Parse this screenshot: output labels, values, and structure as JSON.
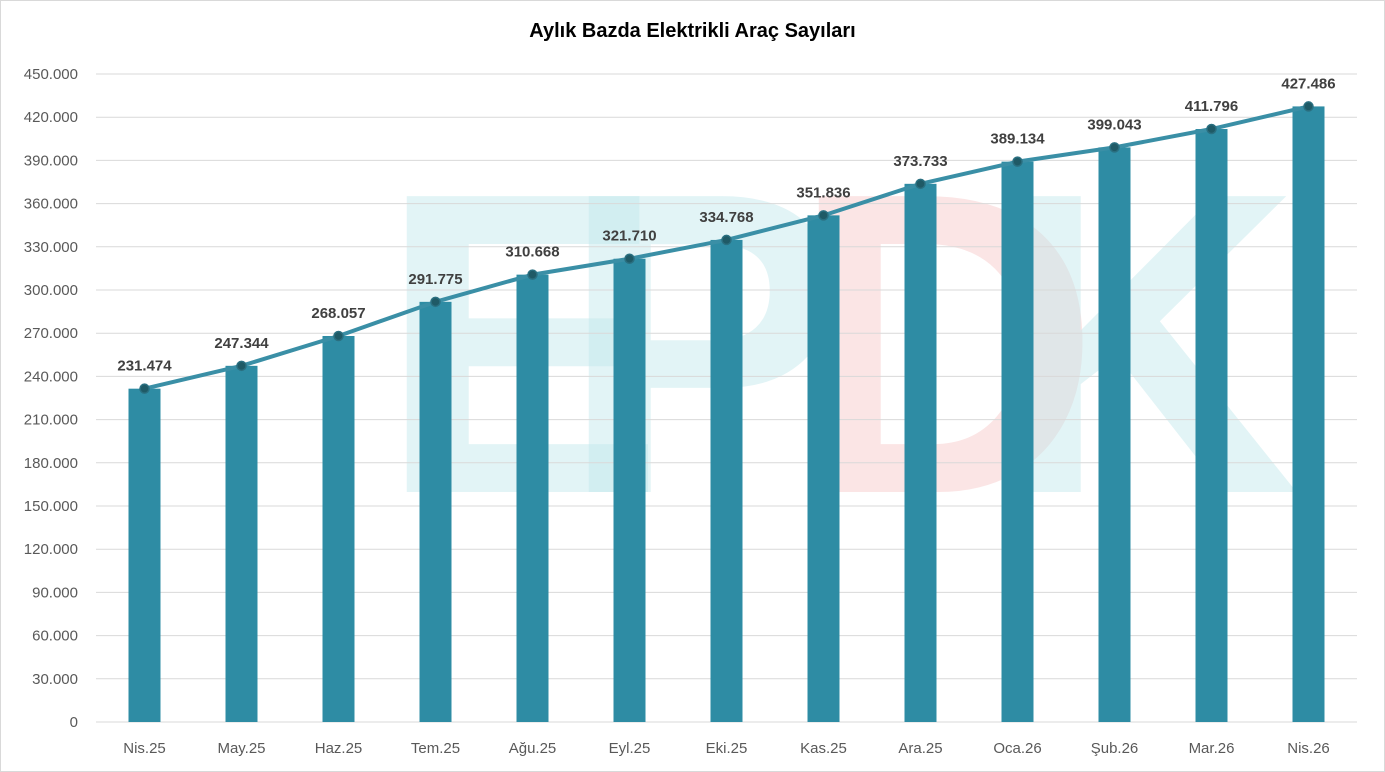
{
  "chart_data": {
    "type": "bar",
    "title": "Aylık Bazda Elektrikli Araç Sayıları",
    "watermark": "EPDK",
    "categories": [
      "Nis.25",
      "May.25",
      "Haz.25",
      "Tem.25",
      "Ağu.25",
      "Eyl.25",
      "Eki.25",
      "Kas.25",
      "Ara.25",
      "Oca.26",
      "Şub.26",
      "Mar.26",
      "Nis.26"
    ],
    "values": [
      231474,
      247344,
      268057,
      291775,
      310668,
      321710,
      334768,
      351836,
      373733,
      389134,
      399043,
      411796,
      427486
    ],
    "value_labels": [
      "231.474",
      "247.344",
      "268.057",
      "291.775",
      "310.668",
      "321.710",
      "334.768",
      "351.836",
      "373.733",
      "389.134",
      "399.043",
      "411.796",
      "427.486"
    ],
    "line_overlay": true,
    "ylim": [
      0,
      450000
    ],
    "yticks": [
      0,
      30000,
      60000,
      90000,
      120000,
      150000,
      180000,
      210000,
      240000,
      270000,
      300000,
      330000,
      360000,
      390000,
      420000,
      450000
    ],
    "ytick_labels": [
      "0",
      "30.000",
      "60.000",
      "90.000",
      "120.000",
      "150.000",
      "180.000",
      "210.000",
      "240.000",
      "270.000",
      "300.000",
      "330.000",
      "360.000",
      "390.000",
      "420.000",
      "450.000"
    ],
    "grid": true,
    "colors": {
      "bar": "#2e8ca4",
      "line": "#3a8fa6",
      "marker": "#1f5a66",
      "grid": "#d9d9d9"
    }
  }
}
